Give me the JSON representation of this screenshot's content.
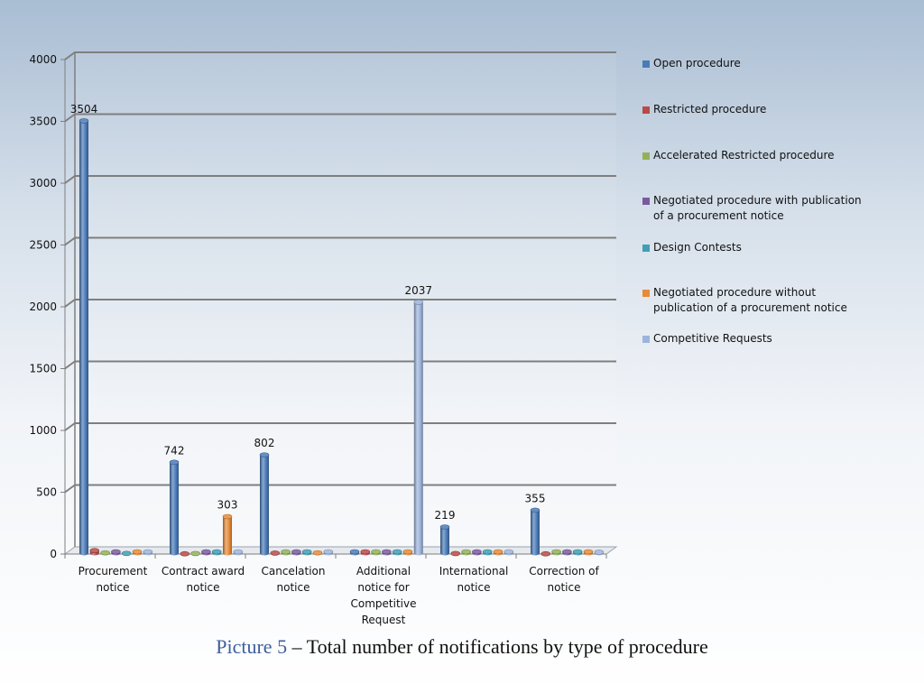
{
  "caption": {
    "label": "Picture 5",
    "separator": " – ",
    "text": "Total number of notifications by type of procedure"
  },
  "colors": {
    "open": "#4a7ab8",
    "restricted": "#b84a47",
    "accelerated": "#92b158",
    "negotiated_pub": "#7a5a9e",
    "design": "#3f9fb5",
    "negotiated_nopub": "#e88a36",
    "competitive": "#9db4dc"
  },
  "chart_data": {
    "type": "bar",
    "style": "3d-cylinder",
    "title": "Total number of notifications by type of procedure",
    "xlabel": "",
    "ylabel": "",
    "ylim": [
      0,
      4000
    ],
    "yticks": [
      "0",
      "500",
      "1000",
      "1500",
      "2000",
      "2500",
      "3000",
      "3500",
      "4000"
    ],
    "grid": true,
    "legend_position": "right",
    "categories": [
      [
        "Procurement",
        "notice"
      ],
      [
        "Contract award",
        "notice"
      ],
      [
        "Cancelation",
        "notice"
      ],
      [
        "Additional",
        "notice for",
        "Competitive",
        "Request"
      ],
      [
        "International",
        "notice"
      ],
      [
        "Correction of",
        "notice"
      ]
    ],
    "series": [
      {
        "name": "Open procedure",
        "lines": [
          "Open procedure"
        ],
        "color_key": "open",
        "values": [
          3504,
          742,
          802,
          0,
          219,
          355
        ]
      },
      {
        "name": "Restricted procedure",
        "lines": [
          "Restricted procedure"
        ],
        "color_key": "restricted",
        "values": [
          28,
          2,
          8,
          0,
          4,
          2
        ]
      },
      {
        "name": "Accelerated Restricted procedure",
        "lines": [
          "Accelerated Restricted procedure"
        ],
        "color_key": "accelerated",
        "values": [
          10,
          4,
          0,
          0,
          0,
          0
        ]
      },
      {
        "name": "Negotiated procedure with publication of a procurement notice",
        "lines": [
          "Negotiated procedure with publication",
          "of a procurement notice"
        ],
        "color_key": "negotiated_pub",
        "values": [
          0,
          0,
          0,
          0,
          0,
          0
        ]
      },
      {
        "name": "Design Contests",
        "lines": [
          "Design Contests"
        ],
        "color_key": "design",
        "values": [
          5,
          0,
          0,
          0,
          0,
          0
        ]
      },
      {
        "name": "Negotiated procedure without publication of a procurement notice",
        "lines": [
          "Negotiated procedure without",
          "publication of a procurement notice"
        ],
        "color_key": "negotiated_nopub",
        "values": [
          0,
          303,
          10,
          0,
          0,
          0
        ]
      },
      {
        "name": "Competitive Requests",
        "lines": [
          "Competitive Requests"
        ],
        "color_key": "competitive",
        "values": [
          0,
          0,
          0,
          2037,
          0,
          15
        ]
      }
    ],
    "data_labels": [
      {
        "series": 0,
        "category": 0,
        "text": "3504"
      },
      {
        "series": 0,
        "category": 1,
        "text": "742"
      },
      {
        "series": 5,
        "category": 1,
        "text": "303"
      },
      {
        "series": 0,
        "category": 2,
        "text": "802"
      },
      {
        "series": 6,
        "category": 3,
        "text": "2037"
      },
      {
        "series": 0,
        "category": 4,
        "text": "219"
      },
      {
        "series": 0,
        "category": 5,
        "text": "355"
      }
    ]
  }
}
